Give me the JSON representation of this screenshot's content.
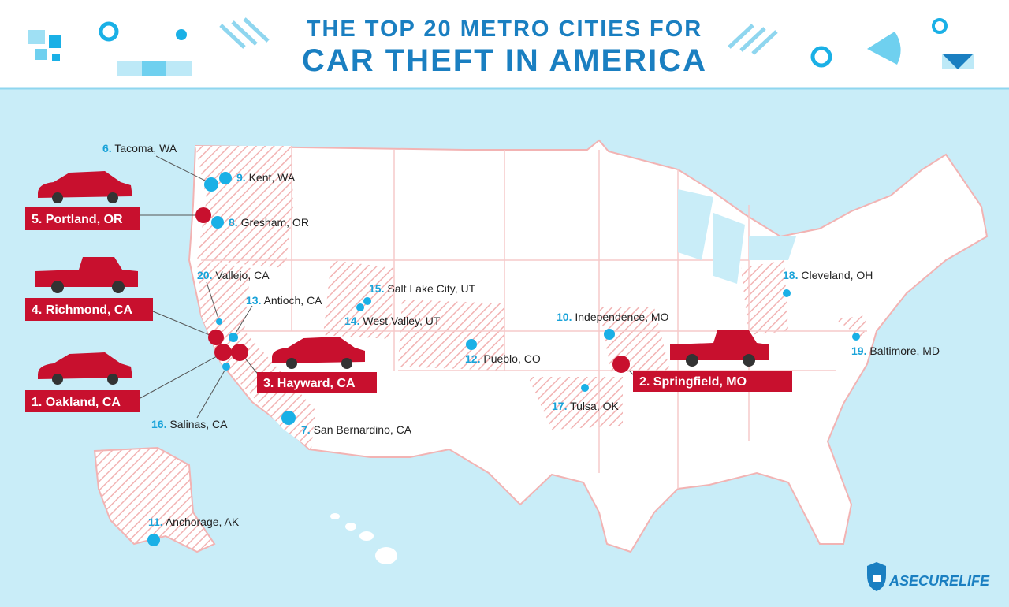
{
  "header": {
    "title_line1": "THE TOP 20 METRO CITIES FOR",
    "title_line2": "CAR THEFT IN AMERICA"
  },
  "cities": [
    {
      "rank": "1.",
      "name": "Oakland, CA"
    },
    {
      "rank": "2.",
      "name": "Springfield, MO"
    },
    {
      "rank": "3.",
      "name": "Hayward, CA"
    },
    {
      "rank": "4.",
      "name": "Richmond, CA"
    },
    {
      "rank": "5.",
      "name": "Portland, OR"
    },
    {
      "rank": "6.",
      "name": "Tacoma, WA"
    },
    {
      "rank": "7.",
      "name": "San Bernardino, CA"
    },
    {
      "rank": "8.",
      "name": "Gresham, OR"
    },
    {
      "rank": "9.",
      "name": "Kent, WA"
    },
    {
      "rank": "10.",
      "name": "Independence, MO"
    },
    {
      "rank": "11.",
      "name": "Anchorage, AK"
    },
    {
      "rank": "12.",
      "name": "Pueblo, CO"
    },
    {
      "rank": "13.",
      "name": "Antioch, CA"
    },
    {
      "rank": "14.",
      "name": "West Valley, UT"
    },
    {
      "rank": "15.",
      "name": "Salt Lake City, UT"
    },
    {
      "rank": "16.",
      "name": "Salinas, CA"
    },
    {
      "rank": "17.",
      "name": "Tulsa, OK"
    },
    {
      "rank": "18.",
      "name": "Cleveland, OH"
    },
    {
      "rank": "19.",
      "name": "Baltimore, MD"
    },
    {
      "rank": "20.",
      "name": "Vallejo, CA"
    }
  ],
  "logo": "ASECURELIFE"
}
